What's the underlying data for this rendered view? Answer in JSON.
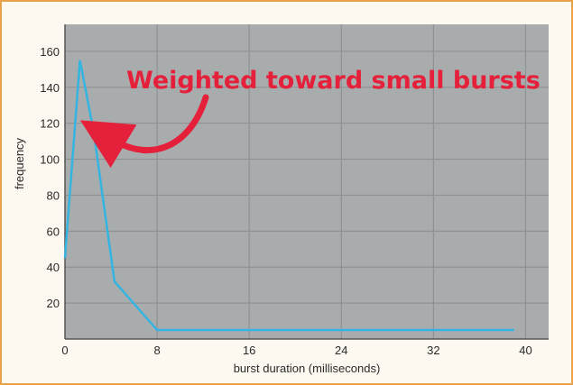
{
  "chart_data": {
    "type": "line",
    "xlabel": "burst duration (milliseconds)",
    "ylabel": "frequency",
    "xlim": [
      0,
      42
    ],
    "ylim": [
      0,
      175
    ],
    "xticks": [
      0,
      8,
      16,
      24,
      32,
      40
    ],
    "yticks": [
      20,
      40,
      60,
      80,
      100,
      120,
      140,
      160
    ],
    "grid": true,
    "series": [
      {
        "x": [
          0,
          1.3,
          2.5,
          4.3,
          8,
          39
        ],
        "y": [
          45,
          155,
          115,
          32,
          5,
          5
        ],
        "color": "#34b4e0"
      }
    ],
    "annotation": {
      "text": "Weighted toward small bursts",
      "color": "#e5203a"
    },
    "colors": {
      "plot_background": "#a9acad",
      "grid": "#8e9193",
      "line": "#34b4e0",
      "frame_border": "#e9a14a"
    }
  }
}
